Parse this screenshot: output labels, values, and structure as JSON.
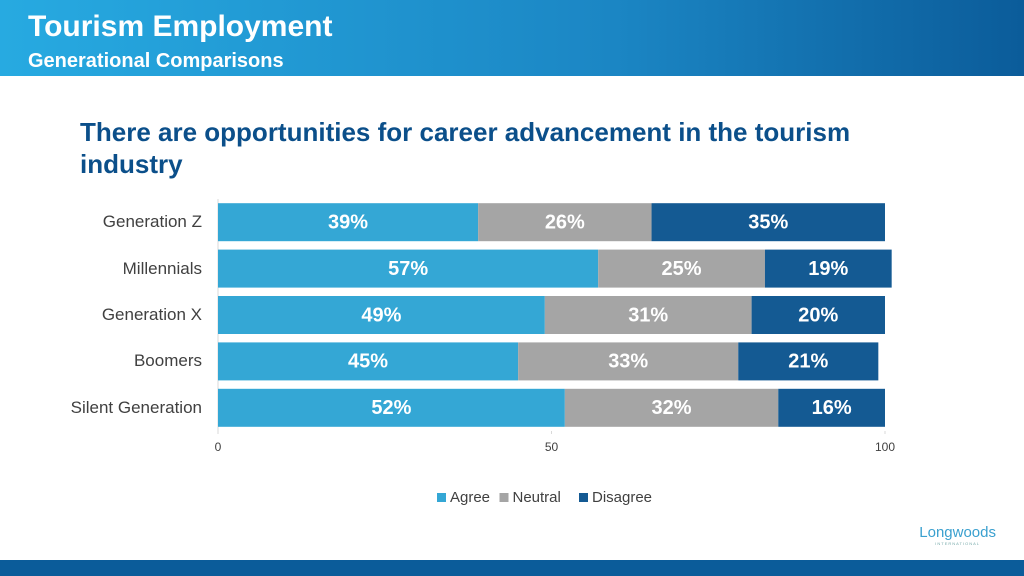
{
  "header": {
    "title": "Tourism Employment",
    "subtitle": "Generational Comparisons"
  },
  "chart_data": {
    "type": "stacked_barh",
    "title": "There are opportunities for career advancement in the tourism industry",
    "categories": [
      "Generation Z",
      "Millennials",
      "Generation X",
      "Boomers",
      "Silent Generation"
    ],
    "series": [
      {
        "name": "Agree",
        "color": "#34a7d5",
        "values": [
          39,
          57,
          49,
          45,
          52
        ],
        "value_labels": [
          "39%",
          "57%",
          "49%",
          "45%",
          "52%"
        ]
      },
      {
        "name": "Neutral",
        "color": "#a5a5a5",
        "values": [
          26,
          25,
          31,
          33,
          32
        ],
        "value_labels": [
          "26%",
          "25%",
          "31%",
          "33%",
          "32%"
        ]
      },
      {
        "name": "Disagree",
        "color": "#145a93",
        "values": [
          35,
          19,
          20,
          21,
          16
        ],
        "value_labels": [
          "35%",
          "19%",
          "20%",
          "21%",
          "16%"
        ]
      }
    ],
    "xlim": [
      0,
      100
    ],
    "xticks": [
      0,
      50,
      100
    ],
    "legend": "bottom"
  },
  "logo": {
    "name": "Longwoods",
    "tagline": "INTERNATIONAL"
  }
}
